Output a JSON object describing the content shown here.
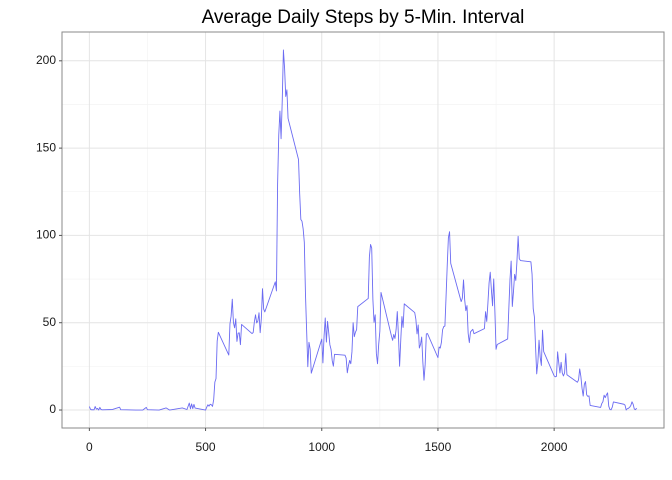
{
  "chart_data": {
    "type": "line",
    "title": "Average Daily Steps by 5-Min. Interval",
    "color": "#6b6bf2",
    "grid": true,
    "minor_grid": true,
    "xlim": [
      -117.75,
      2472.75
    ],
    "xticks": [
      0,
      500,
      1000,
      1500,
      2000
    ],
    "ylim": [
      -10.3,
      216.5
    ],
    "yticks": [
      0,
      50,
      100,
      150,
      200
    ],
    "x": [
      0,
      5,
      10,
      15,
      20,
      25,
      30,
      35,
      40,
      45,
      50,
      55,
      100,
      130,
      135,
      200,
      230,
      245,
      250,
      300,
      330,
      345,
      400,
      420,
      430,
      435,
      440,
      445,
      450,
      455,
      500,
      505,
      510,
      515,
      520,
      525,
      530,
      535,
      540,
      545,
      550,
      555,
      600,
      605,
      610,
      615,
      620,
      625,
      630,
      635,
      640,
      645,
      650,
      655,
      700,
      705,
      710,
      715,
      720,
      725,
      730,
      735,
      740,
      745,
      750,
      755,
      800,
      805,
      810,
      815,
      820,
      825,
      830,
      835,
      840,
      845,
      850,
      855,
      900,
      905,
      910,
      915,
      920,
      925,
      930,
      935,
      940,
      945,
      950,
      955,
      1000,
      1005,
      1010,
      1015,
      1020,
      1025,
      1030,
      1035,
      1040,
      1045,
      1050,
      1055,
      1100,
      1105,
      1110,
      1115,
      1120,
      1125,
      1130,
      1135,
      1140,
      1145,
      1150,
      1155,
      1200,
      1205,
      1210,
      1215,
      1220,
      1225,
      1230,
      1235,
      1240,
      1245,
      1250,
      1255,
      1300,
      1305,
      1310,
      1315,
      1320,
      1325,
      1330,
      1335,
      1340,
      1345,
      1350,
      1355,
      1400,
      1405,
      1410,
      1415,
      1420,
      1425,
      1430,
      1435,
      1440,
      1445,
      1450,
      1455,
      1500,
      1505,
      1510,
      1515,
      1520,
      1525,
      1530,
      1535,
      1540,
      1545,
      1550,
      1555,
      1600,
      1605,
      1610,
      1615,
      1620,
      1625,
      1630,
      1635,
      1640,
      1645,
      1650,
      1655,
      1700,
      1705,
      1710,
      1715,
      1720,
      1725,
      1730,
      1735,
      1740,
      1745,
      1750,
      1755,
      1800,
      1805,
      1810,
      1815,
      1820,
      1825,
      1830,
      1835,
      1840,
      1845,
      1850,
      1855,
      1900,
      1905,
      1910,
      1915,
      1920,
      1925,
      1930,
      1935,
      1940,
      1945,
      1950,
      1955,
      2000,
      2005,
      2010,
      2015,
      2020,
      2025,
      2030,
      2035,
      2040,
      2045,
      2050,
      2055,
      2100,
      2105,
      2110,
      2115,
      2120,
      2125,
      2130,
      2135,
      2140,
      2145,
      2150,
      2155,
      2200,
      2205,
      2210,
      2215,
      2220,
      2225,
      2230,
      2235,
      2240,
      2245,
      2250,
      2255,
      2300,
      2305,
      2310,
      2315,
      2320,
      2325,
      2330,
      2335,
      2340,
      2345,
      2350,
      2355
    ],
    "values": [
      2,
      0.4,
      0.1,
      0.2,
      0.1,
      2,
      0.5,
      0.9,
      0,
      1.5,
      0.3,
      0.1,
      0.3,
      1.6,
      0.2,
      0,
      0,
      1.5,
      0.2,
      0,
      1.2,
      0,
      1.2,
      0.3,
      4,
      0.7,
      3.5,
      0.8,
      3.2,
      1.1,
      0,
      1.6,
      3,
      2.2,
      3.3,
      3,
      2.1,
      6,
      16,
      18,
      39.5,
      44.5,
      31.5,
      49.3,
      53.8,
      63.5,
      50,
      47.1,
      52.2,
      39.3,
      44,
      44.2,
      37.4,
      49,
      43.8,
      44.4,
      50.5,
      54.5,
      49.9,
      50.9,
      55.7,
      44.3,
      52.3,
      69.5,
      57.8,
      56.2,
      73.4,
      68.2,
      129.4,
      157.5,
      171.2,
      155.4,
      177.3,
      206.2,
      195.9,
      179.6,
      183.4,
      167,
      143.5,
      124,
      109.1,
      108.1,
      103.7,
      96,
      66.2,
      45.2,
      24.8,
      38.8,
      34.9,
      21.1,
      40.6,
      26.98,
      42.4,
      52.7,
      38.9,
      50.8,
      44.3,
      37.4,
      34.7,
      28.3,
      25.1,
      31.9,
      31.4,
      29.7,
      21.3,
      25.5,
      28.4,
      26.5,
      33.4,
      49.98,
      42,
      44.6,
      46,
      59.2,
      63.9,
      87.7,
      94.8,
      92.8,
      63.4,
      50.2,
      54.5,
      32.4,
      26.5,
      37.7,
      45.1,
      67.3,
      42.3,
      39.9,
      43.3,
      40.98,
      46.2,
      56.4,
      42.8,
      25.1,
      39.98,
      53.5,
      47.3,
      60.8,
      55.8,
      51.96,
      43.6,
      48.7,
      35.5,
      37.5,
      41.8,
      27.5,
      17.1,
      26.1,
      43.6,
      43.8,
      30,
      36.1,
      35.5,
      38.8,
      45.96,
      47.8,
      48.1,
      65.3,
      82.9,
      98.7,
      102.1,
      84,
      62.1,
      64.1,
      74.5,
      63.2,
      56.9,
      59.8,
      43.9,
      38.6,
      44.7,
      45.5,
      46.2,
      43.7,
      46.6,
      56.3,
      50.7,
      61.2,
      72.7,
      78.9,
      68.9,
      59.7,
      75.1,
      56.5,
      34.8,
      37.5,
      40.7,
      58,
      74.7,
      85.3,
      59.3,
      67.8,
      77.7,
      74.2,
      85.3,
      99.5,
      86.6,
      85.6,
      84.9,
      77.8,
      58,
      53.4,
      36.3,
      20.7,
      27.4,
      40,
      30.2,
      25.5,
      45.7,
      33.5,
      19.6,
      19,
      19.3,
      33.3,
      26.8,
      21.2,
      27.3,
      21.3,
      19.5,
      21.3,
      32.3,
      20.2,
      15.9,
      17.2,
      23.5,
      19.2,
      12.5,
      8,
      14.7,
      16.3,
      8.7,
      7.8,
      8.1,
      2.6,
      1.5,
      3.7,
      4.8,
      8.5,
      7.1,
      8.7,
      9.8,
      2.2,
      0.3,
      0.1,
      1.6,
      4.6,
      3.3,
      2.8,
      0,
      0.8,
      1,
      1.6,
      2.6,
      4.7,
      3.3,
      0.6,
      0.2,
      1.1
    ]
  }
}
